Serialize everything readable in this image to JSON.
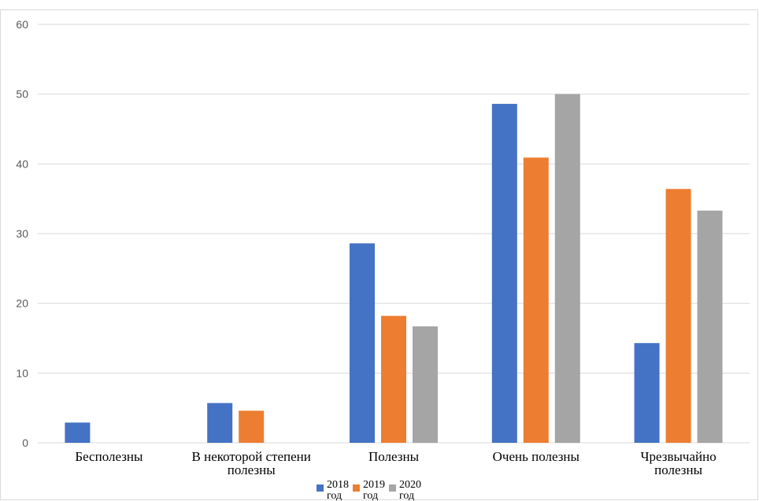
{
  "chart_data": {
    "type": "bar",
    "categories": [
      [
        "Бесполезны"
      ],
      [
        "В некоторой степени",
        "полезны"
      ],
      [
        "Полезны"
      ],
      [
        "Очень полезны"
      ],
      [
        "Чрезвычайно",
        "полезны"
      ]
    ],
    "series": [
      {
        "name": "2018 год",
        "legend_lines": [
          "2018",
          "год"
        ],
        "color": "#4472c4",
        "values": [
          2.9,
          5.7,
          28.6,
          48.6,
          14.3
        ]
      },
      {
        "name": "2019 год",
        "legend_lines": [
          "2019",
          "год"
        ],
        "color": "#ed7d31",
        "values": [
          0,
          4.6,
          18.2,
          40.9,
          36.4
        ]
      },
      {
        "name": "2020 год",
        "legend_lines": [
          "2020",
          "год"
        ],
        "color": "#a5a5a5",
        "values": [
          0,
          0,
          16.7,
          50.0,
          33.3
        ]
      }
    ],
    "yticks": [
      0,
      10,
      20,
      30,
      40,
      50,
      60
    ],
    "ylim": [
      0,
      60
    ],
    "grid": true,
    "legend_position": "bottom"
  }
}
